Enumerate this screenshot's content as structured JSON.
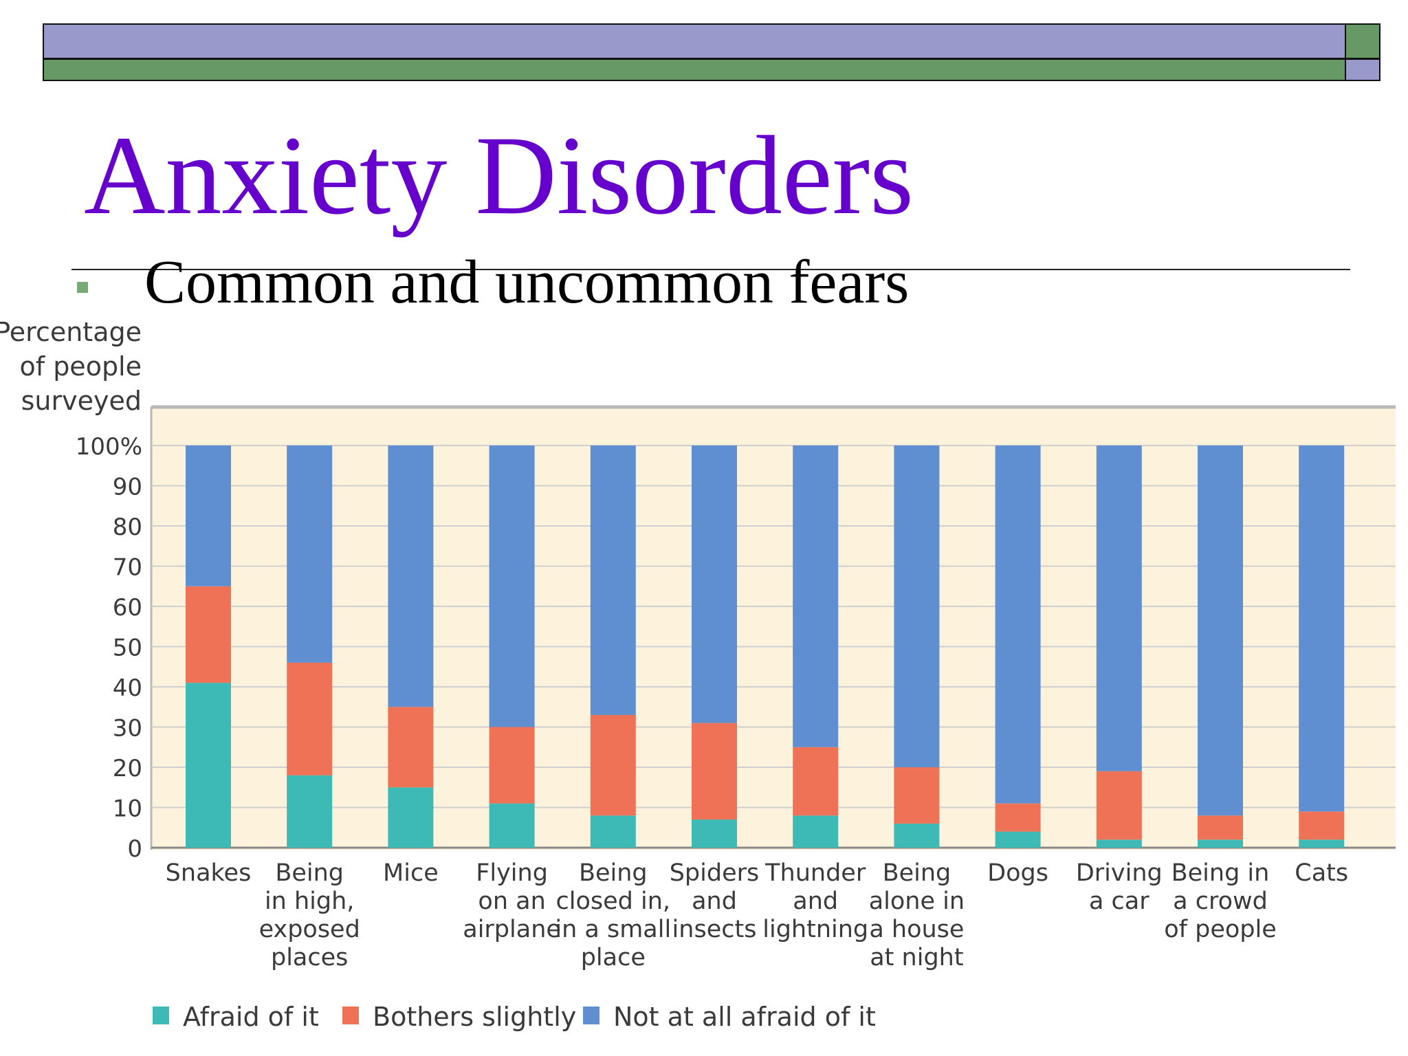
{
  "slide": {
    "title": "Anxiety Disorders",
    "bullet": "Common and uncommon fears"
  },
  "colors": {
    "title": "#6600cc",
    "deco_purple": "#9999cc",
    "deco_green": "#669966",
    "bullet_marker": "#77aa77",
    "plot_bg": "#fdf3dc"
  },
  "chart_data": {
    "type": "bar",
    "stacked": true,
    "ylabel": "Percentage of people surveyed",
    "ylabel_lines": [
      "Percentage",
      "of people",
      "surveyed"
    ],
    "ylim": [
      0,
      100
    ],
    "yticks": [
      0,
      10,
      20,
      30,
      40,
      50,
      60,
      70,
      80,
      90,
      100
    ],
    "ytick_labels": [
      "0",
      "10",
      "20",
      "30",
      "40",
      "50",
      "60",
      "70",
      "80",
      "90",
      "100%"
    ],
    "grid": true,
    "legend_position": "bottom-left",
    "categories": [
      "Snakes",
      "Being in high, exposed places",
      "Mice",
      "Flying on an airplane",
      "Being closed in, in a small place",
      "Spiders and insects",
      "Thunder and lightning",
      "Being alone in a house at night",
      "Dogs",
      "Driving a car",
      "Being in a crowd of people",
      "Cats"
    ],
    "category_lines": [
      [
        "Snakes"
      ],
      [
        "Being",
        "in high,",
        "exposed",
        "places"
      ],
      [
        "Mice"
      ],
      [
        "Flying",
        "on an",
        "airplane"
      ],
      [
        "Being",
        "closed in,",
        "in a small",
        "place"
      ],
      [
        "Spiders",
        "and",
        "insects"
      ],
      [
        "Thunder",
        "and",
        "lightning"
      ],
      [
        "Being",
        "alone in",
        "a house",
        "at night"
      ],
      [
        "Dogs"
      ],
      [
        "Driving",
        "a car"
      ],
      [
        "Being in",
        "a crowd",
        "of people"
      ],
      [
        "Cats"
      ]
    ],
    "series": [
      {
        "name": "Afraid of it",
        "color": "#3dbab5",
        "values": [
          41,
          18,
          15,
          11,
          8,
          7,
          8,
          6,
          4,
          2,
          2,
          2
        ]
      },
      {
        "name": "Bothers slightly",
        "color": "#ef7156",
        "values": [
          24,
          28,
          20,
          19,
          25,
          24,
          17,
          14,
          7,
          17,
          6,
          7
        ]
      },
      {
        "name": "Not at all afraid of it",
        "color": "#5f8fd0",
        "values": [
          35,
          54,
          65,
          70,
          67,
          69,
          75,
          80,
          89,
          81,
          92,
          91
        ]
      }
    ]
  }
}
